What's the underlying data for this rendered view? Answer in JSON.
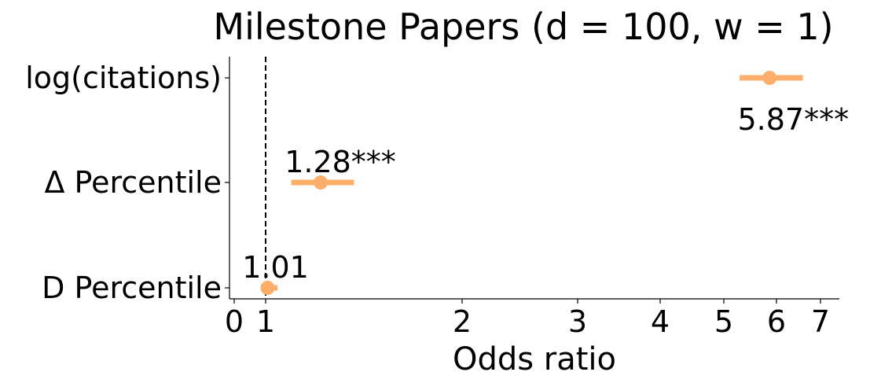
{
  "chart_data": {
    "type": "forest",
    "title": "Milestone Papers (d = 100, w = 1)",
    "xlabel": "Odds ratio",
    "ylabel": "",
    "x_ticks": [
      0,
      1,
      2,
      3,
      4,
      5,
      6,
      7
    ],
    "categories": [
      "log(citations)",
      "Δ Percentile",
      "D Percentile"
    ],
    "series": [
      {
        "values": [
          5.87,
          1.28,
          1.01
        ],
        "ci_low": [
          5.3,
          1.13,
          0.97
        ],
        "ci_high": [
          6.6,
          1.45,
          1.06
        ],
        "labels": [
          "5.87***",
          "1.28***",
          "1.01"
        ]
      }
    ],
    "reference_line": 1,
    "grid": false,
    "colors": {
      "marker": "#fdae6b",
      "reference": "#000000"
    }
  }
}
